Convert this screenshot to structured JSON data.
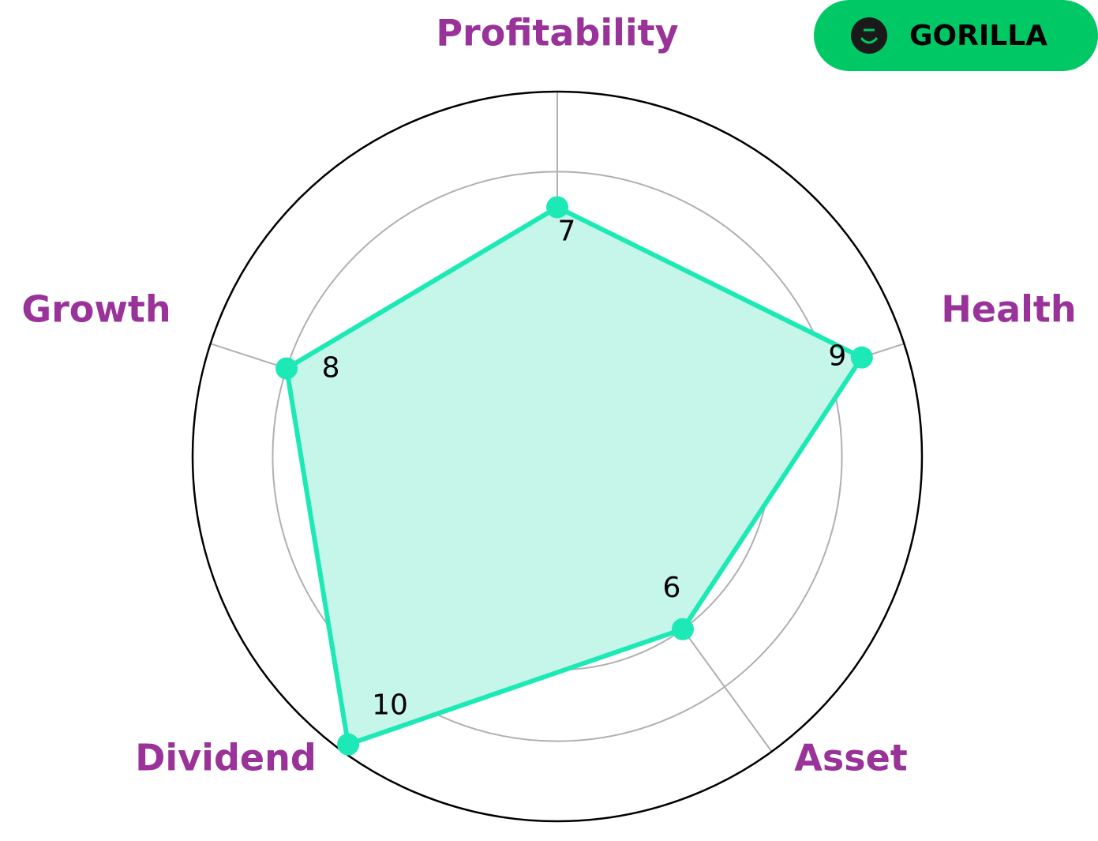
{
  "brand": {
    "label": "GORILLA"
  },
  "chart_data": {
    "type": "radar",
    "categories": [
      "Profitability",
      "Health",
      "Asset",
      "Dividend",
      "Growth"
    ],
    "values": [
      7,
      9,
      6,
      10,
      8
    ],
    "color": "#1de9b6",
    "fill_color": "#c6f6ea",
    "label_color": "#993399",
    "rlim": [
      0,
      10.25
    ],
    "rticks": [
      2,
      4,
      6,
      8
    ],
    "grid": true
  }
}
